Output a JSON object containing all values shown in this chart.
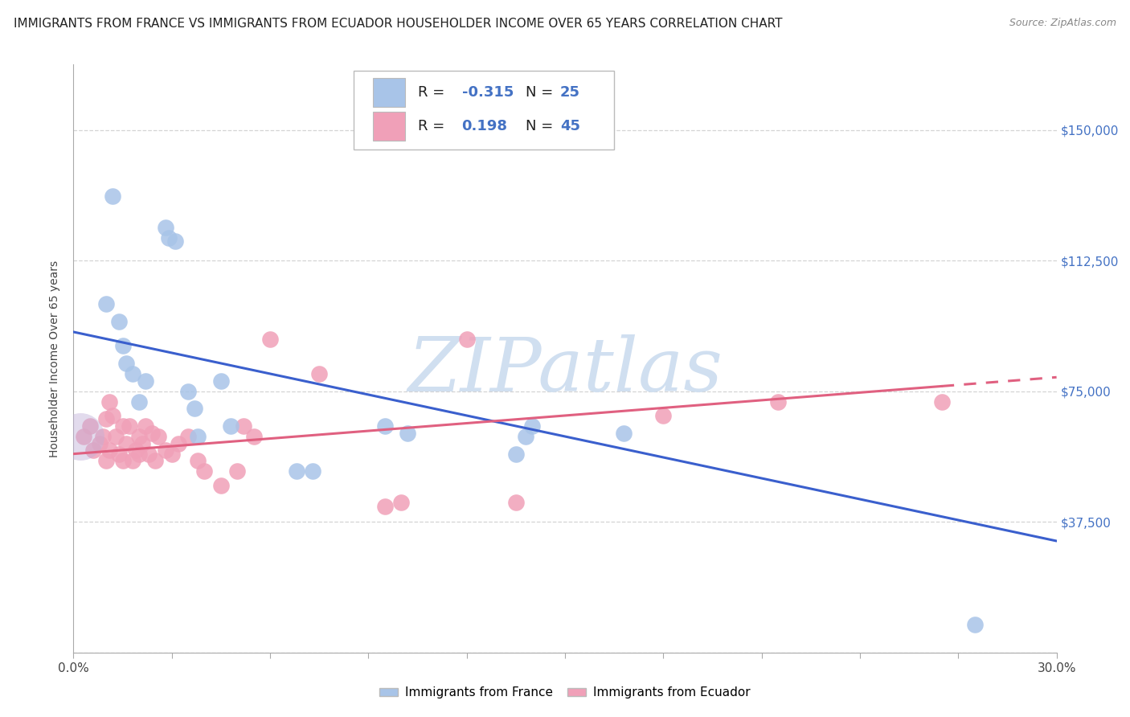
{
  "title": "IMMIGRANTS FROM FRANCE VS IMMIGRANTS FROM ECUADOR HOUSEHOLDER INCOME OVER 65 YEARS CORRELATION CHART",
  "source": "Source: ZipAtlas.com",
  "ylabel": "Householder Income Over 65 years",
  "xlim": [
    0.0,
    30.0
  ],
  "ylim": [
    0,
    168750
  ],
  "yticks": [
    0,
    37500,
    75000,
    112500,
    150000
  ],
  "ytick_labels": [
    "",
    "$37,500",
    "$75,000",
    "$112,500",
    "$150,000"
  ],
  "xticks": [
    0.0,
    3.0,
    6.0,
    9.0,
    12.0,
    15.0,
    18.0,
    21.0,
    24.0,
    27.0,
    30.0
  ],
  "france_R": -0.315,
  "france_N": 25,
  "ecuador_R": 0.198,
  "ecuador_N": 45,
  "france_color": "#a8c4e8",
  "ecuador_color": "#f0a0b8",
  "france_line_color": "#3a5fcd",
  "ecuador_line_color": "#e06080",
  "watermark_text": "ZIPatlas",
  "watermark_color": "#d0dff0",
  "background_color": "#ffffff",
  "grid_color": "#d0d0d0",
  "title_color": "#222222",
  "source_color": "#888888",
  "ytick_color": "#4472c4",
  "xtick_color": "#444444",
  "title_fontsize": 11,
  "axis_label_fontsize": 10,
  "tick_fontsize": 11,
  "legend_fontsize": 13,
  "france_x": [
    1.2,
    2.8,
    2.9,
    3.1,
    1.0,
    1.4,
    1.5,
    1.6,
    1.8,
    2.0,
    2.2,
    3.5,
    3.7,
    4.5,
    6.8,
    7.3,
    9.5,
    10.2,
    13.5,
    13.8,
    14.0,
    16.8,
    3.8,
    4.8,
    27.5
  ],
  "france_y": [
    131000,
    122000,
    119000,
    118000,
    100000,
    95000,
    88000,
    83000,
    80000,
    72000,
    78000,
    75000,
    70000,
    78000,
    52000,
    52000,
    65000,
    63000,
    57000,
    62000,
    65000,
    63000,
    62000,
    65000,
    8000
  ],
  "ecuador_x": [
    0.3,
    0.5,
    0.6,
    0.8,
    0.9,
    1.0,
    1.0,
    1.1,
    1.1,
    1.2,
    1.3,
    1.4,
    1.5,
    1.5,
    1.6,
    1.7,
    1.8,
    1.9,
    2.0,
    2.0,
    2.1,
    2.2,
    2.3,
    2.4,
    2.5,
    2.6,
    2.8,
    3.0,
    3.2,
    3.5,
    3.8,
    4.0,
    4.5,
    5.0,
    5.2,
    5.5,
    6.0,
    7.5,
    9.5,
    10.0,
    12.0,
    13.5,
    18.0,
    21.5,
    26.5
  ],
  "ecuador_y": [
    62000,
    65000,
    58000,
    60000,
    62000,
    67000,
    55000,
    58000,
    72000,
    68000,
    62000,
    57000,
    55000,
    65000,
    60000,
    65000,
    55000,
    58000,
    62000,
    57000,
    60000,
    65000,
    57000,
    63000,
    55000,
    62000,
    58000,
    57000,
    60000,
    62000,
    55000,
    52000,
    48000,
    52000,
    65000,
    62000,
    90000,
    80000,
    42000,
    43000,
    90000,
    43000,
    68000,
    72000,
    72000
  ],
  "large_overlap_x": 0.2,
  "large_overlap_y": 62000,
  "france_line_x0": 0.0,
  "france_line_y0": 92000,
  "france_line_x1": 30.0,
  "france_line_y1": 32000,
  "ecuador_line_x0": 0.0,
  "ecuador_line_y0": 57000,
  "ecuador_line_x1": 30.0,
  "ecuador_line_y1": 79000,
  "ecuador_dash_start": 26.5
}
